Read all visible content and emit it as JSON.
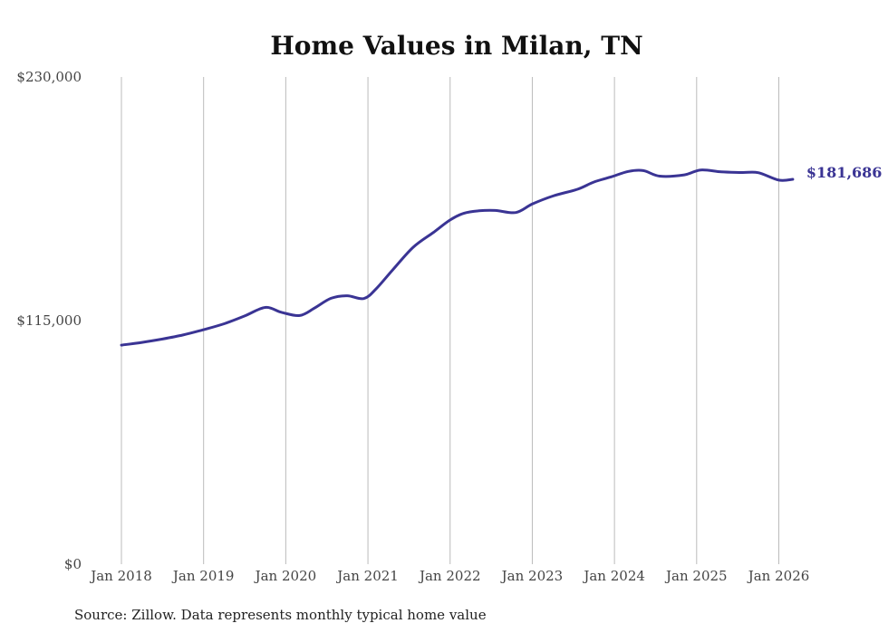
{
  "chart_data": {
    "type": "line",
    "title": "Home Values in Milan, TN",
    "xlabel": "",
    "ylabel": "",
    "source": "Source: Zillow. Data represents monthly typical home value",
    "ylim": [
      0,
      230000
    ],
    "yticks": [
      {
        "value": 0,
        "label": "$0"
      },
      {
        "value": 115000,
        "label": "$115,000"
      },
      {
        "value": 230000,
        "label": "$230,000"
      }
    ],
    "xticks": [
      {
        "value": 2018,
        "label": "Jan 2018"
      },
      {
        "value": 2019,
        "label": "Jan 2019"
      },
      {
        "value": 2020,
        "label": "Jan 2020"
      },
      {
        "value": 2021,
        "label": "Jan 2021"
      },
      {
        "value": 2022,
        "label": "Jan 2022"
      },
      {
        "value": 2023,
        "label": "Jan 2023"
      },
      {
        "value": 2024,
        "label": "Jan 2024"
      },
      {
        "value": 2025,
        "label": "Jan 2025"
      },
      {
        "value": 2026,
        "label": "Jan 2026"
      }
    ],
    "xlim": [
      2018,
      2026.17
    ],
    "grid": "vertical",
    "series": [
      {
        "name": "Milan, TN",
        "color": "#3a3494",
        "end_label": "$181,686",
        "x": [
          2018.0,
          2018.25,
          2018.5,
          2018.75,
          2019.0,
          2019.25,
          2019.5,
          2019.75,
          2019.95,
          2020.17,
          2020.35,
          2020.55,
          2020.75,
          2020.95,
          2021.1,
          2021.3,
          2021.55,
          2021.8,
          2022.0,
          2022.17,
          2022.35,
          2022.55,
          2022.8,
          2023.0,
          2023.25,
          2023.55,
          2023.75,
          2023.95,
          2024.17,
          2024.35,
          2024.55,
          2024.85,
          2025.05,
          2025.3,
          2025.55,
          2025.75,
          2026.0,
          2026.17
        ],
        "values": [
          103400,
          104700,
          106300,
          108200,
          110700,
          113500,
          117200,
          121200,
          118900,
          117400,
          120900,
          125500,
          126700,
          125400,
          130000,
          138900,
          149600,
          156700,
          162500,
          165700,
          166800,
          167000,
          166000,
          170000,
          173800,
          177000,
          180400,
          182700,
          185400,
          185800,
          183200,
          183800,
          186100,
          185200,
          184900,
          184800,
          181300,
          181686
        ]
      }
    ]
  }
}
